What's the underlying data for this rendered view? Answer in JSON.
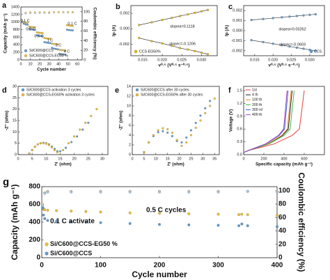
{
  "chart_data": [
    {
      "type": "scatter",
      "label": "a",
      "xlabel": "Cycle number",
      "ylabel": "Capacity (mAh g⁻¹)",
      "y2label": "Coulombic efficiency (%)",
      "xlim": [
        0,
        65
      ],
      "xticks": [
        0,
        10,
        20,
        30,
        40,
        50,
        60
      ],
      "ylim": [
        0,
        1400
      ],
      "yticks": [
        0,
        200,
        400,
        600,
        800,
        1000,
        1200,
        1400
      ],
      "y2lim": [
        0,
        110
      ],
      "y2ticks": [
        0,
        20,
        40,
        60,
        80,
        100
      ],
      "legend": "lower left",
      "annotations": [
        "0.1 C",
        "0.2 C",
        "0.5 C",
        "1 C",
        "2 C",
        "4 C",
        "0.1 C"
      ],
      "series": [
        {
          "name": "Si/C600@CCS",
          "color": "#5b9bd5",
          "x": [
            1,
            3,
            5,
            7,
            9,
            11,
            13,
            15,
            17,
            19,
            21,
            23,
            25,
            27,
            29,
            31,
            33,
            35,
            37,
            39,
            41,
            43,
            45,
            47,
            49,
            51,
            53,
            55
          ],
          "values": [
            1000,
            960,
            940,
            930,
            820,
            810,
            800,
            795,
            650,
            640,
            630,
            625,
            470,
            460,
            450,
            445,
            320,
            300,
            290,
            280,
            160,
            150,
            145,
            140,
            800,
            790,
            785,
            780
          ]
        },
        {
          "name": "Si/C600@CCS-EG50 %",
          "color": "#f2c12e",
          "x": [
            1,
            3,
            5,
            7,
            9,
            11,
            13,
            15,
            17,
            19,
            21,
            23,
            25,
            27,
            29,
            31,
            33,
            35,
            37,
            39,
            41,
            43,
            45,
            47,
            49,
            51,
            53,
            55
          ],
          "values": [
            1050,
            1000,
            990,
            980,
            880,
            870,
            865,
            860,
            730,
            720,
            715,
            710,
            580,
            570,
            565,
            560,
            430,
            420,
            415,
            410,
            270,
            260,
            255,
            250,
            920,
            910,
            905,
            900
          ]
        },
        {
          "color": "#a9cbe8",
          "axis": "y2",
          "x": [
            1,
            5,
            10,
            15,
            20,
            25,
            30,
            35,
            40,
            45,
            50,
            55
          ],
          "values": [
            80,
            97,
            98,
            98,
            98,
            98,
            98,
            99,
            99,
            99,
            99,
            99
          ]
        },
        {
          "color": "#f7dc8a",
          "axis": "y2",
          "x": [
            1,
            5,
            10,
            15,
            20,
            25,
            30,
            35,
            40,
            45,
            50,
            55
          ],
          "values": [
            82,
            98,
            99,
            99,
            99,
            99,
            99,
            99,
            99,
            99,
            99,
            99
          ]
        }
      ]
    },
    {
      "type": "scatter",
      "label": "b",
      "fit_line": true,
      "xlabel": "v⁰·⁵ (V⁰·⁵ s⁻⁰·⁵)",
      "ylabel": "Ip (A)",
      "xlim": [
        0.012,
        0.034
      ],
      "xticks": [
        0.015,
        {
          "value": 0.02,
          "label": "0.020"
        },
        0.025,
        {
          "value": 0.03,
          "label": "0.030"
        }
      ],
      "ylim": [
        -0.0035,
        0.003
      ],
      "yticks": [
        -0.002,
        {
          "value": 0,
          "label": "0.000"
        },
        0.002
      ],
      "legend": "lower left",
      "annotations": [
        "slopea=0.1118",
        "slopec=-0.1206"
      ],
      "series": [
        {
          "name": "CCS-EG50%",
          "color": "#e6b800",
          "x": [
            0.0141,
            0.0173,
            0.02,
            0.0224,
            0.0245,
            0.0265,
            0.0283,
            0.03,
            0.0316
          ],
          "values": [
            0.00048,
            0.00083,
            0.00114,
            0.0014,
            0.00164,
            0.00186,
            0.00206,
            0.00225,
            0.00243
          ]
        },
        {
          "color": "#e6b800",
          "x": [
            0.0141,
            0.0173,
            0.02,
            0.0224,
            0.0245,
            0.0265,
            0.0283,
            0.03,
            0.0316
          ],
          "values": [
            -0.0012,
            -0.0016,
            -0.0019,
            -0.0022,
            -0.0025,
            -0.0027,
            -0.0029,
            -0.0031,
            -0.0033
          ]
        }
      ]
    },
    {
      "type": "scatter",
      "label": "c",
      "fit_line": true,
      "xlabel": "v⁰·⁵ (V⁰·⁵ s⁻⁰·⁵)",
      "ylabel": "Ip (A)",
      "xlim": [
        0.012,
        0.034
      ],
      "xticks": [
        0.015,
        {
          "value": 0.02,
          "label": "0.020"
        },
        0.025,
        {
          "value": 0.03,
          "label": "0.030"
        }
      ],
      "ylim": [
        -0.0025,
        0.0025
      ],
      "yticks": [
        -0.002,
        -0.001,
        {
          "value": 0,
          "label": "0.000"
        },
        0.001,
        0.002
      ],
      "legend": "lower right",
      "annotations": [
        "slopea=0.03262",
        "slopec=-0.0603"
      ],
      "series": [
        {
          "name": "CCS",
          "color": "#5b9bd5",
          "x": [
            0.0141,
            0.0173,
            0.02,
            0.0224,
            0.0245,
            0.0265,
            0.0283,
            0.03,
            0.0316
          ],
          "values": [
            0.00106,
            0.00116,
            0.00125,
            0.00133,
            0.0014,
            0.00146,
            0.00152,
            0.00158,
            0.00163
          ]
        },
        {
          "color": "#5b9bd5",
          "x": [
            0.0141,
            0.0173,
            0.02,
            0.0224,
            0.0245,
            0.0265,
            0.0283,
            0.03,
            0.0316
          ],
          "values": [
            -0.00095,
            -0.00114,
            -0.0013,
            -0.00145,
            -0.00158,
            -0.0017,
            -0.0018,
            -0.00191,
            -0.002
          ]
        }
      ]
    },
    {
      "type": "scatter",
      "label": "d",
      "xlabel": "Z' (ohm)",
      "ylabel": "-Z'' (ohm)",
      "xlim": [
        0,
        32
      ],
      "xticks": [
        0,
        5,
        10,
        15,
        20,
        25,
        30
      ],
      "ylim": [
        0,
        30
      ],
      "yticks": [
        0,
        5,
        10,
        15,
        20,
        25,
        30
      ],
      "legend": "upper left",
      "series": [
        {
          "name": "Si/C600@CCS activation 3 cycles",
          "color": "#5b9bd5",
          "x": [
            4,
            5,
            6,
            7,
            8,
            9,
            10,
            11,
            12,
            13,
            14,
            15,
            17,
            19,
            21,
            23,
            25
          ],
          "values": [
            0.5,
            2,
            3.5,
            4.5,
            5,
            5.2,
            5,
            4.5,
            3.5,
            2.5,
            1.5,
            1.5,
            3,
            5.5,
            8,
            11,
            14
          ]
        },
        {
          "name": "Si/C600@CCS-EG50% activation 3 cycles",
          "color": "#f2c12e",
          "x": [
            4,
            5,
            6,
            7,
            8,
            9,
            10,
            11,
            12,
            13,
            14,
            16,
            18,
            20,
            22,
            24,
            26,
            28
          ],
          "values": [
            0.5,
            2,
            3.5,
            4.5,
            5,
            5,
            4.8,
            4.2,
            3.2,
            2,
            1,
            2,
            5,
            8,
            11,
            14,
            17,
            20
          ]
        }
      ]
    },
    {
      "type": "scatter",
      "label": "e",
      "xlabel": "Z' (ohm)",
      "ylabel": "-Z'' (ohm)",
      "xlim": [
        0,
        37
      ],
      "xticks": [
        0,
        5,
        10,
        15,
        20,
        25,
        30,
        35
      ],
      "ylim": [
        0,
        14
      ],
      "yticks": [
        0,
        2,
        4,
        6,
        8,
        10,
        12,
        14
      ],
      "legend": "upper left",
      "series": [
        {
          "name": "Si/C600@CCS after 30 cycles",
          "color": "#5b9bd5",
          "x": [
            5,
            7,
            9,
            11,
            13,
            15,
            17,
            19,
            21,
            23,
            25,
            27,
            29,
            31,
            33
          ],
          "values": [
            0.5,
            2.5,
            3.8,
            4.6,
            4.8,
            4.5,
            3.8,
            2.8,
            2.5,
            3.5,
            5,
            6.5,
            8,
            9.5,
            11
          ]
        },
        {
          "name": "Si/C600@CCS-EG50% after 30 cycles",
          "color": "#f2c12e",
          "x": [
            5,
            7,
            9,
            11,
            13,
            15,
            17,
            19,
            21,
            23,
            25,
            27,
            29,
            31,
            33,
            35
          ],
          "values": [
            0.5,
            2.5,
            4,
            5,
            5.4,
            5.2,
            4.5,
            3,
            1.8,
            2.5,
            4,
            5.5,
            7,
            8.5,
            10,
            11.5
          ]
        }
      ]
    },
    {
      "type": "line",
      "label": "f",
      "xlabel": "Specific capacity (mAh g⁻¹)",
      "ylabel": "Voltage (V)",
      "xlim": [
        0,
        800
      ],
      "xticks": [
        0,
        200,
        400,
        600
      ],
      "ylim": [
        0,
        1.6
      ],
      "yticks": [
        {
          "value": 0,
          "label": "0.0"
        },
        0.3,
        0.6,
        0.9,
        1.2,
        1.5
      ],
      "legend": "upper left",
      "series": [
        {
          "name": "1st",
          "color": "#e8403a",
          "x": [
            0,
            50,
            300,
            480,
            552,
            600
          ],
          "values": [
            0.05,
            0.1,
            0.25,
            0.45,
            0.6,
            1.5
          ]
        },
        {
          "name": "4 th",
          "color": "#222222",
          "x": [
            0,
            50,
            240,
            384,
            442,
            480
          ],
          "values": [
            0.05,
            0.1,
            0.25,
            0.45,
            0.6,
            1.5
          ]
        },
        {
          "name": "100 th",
          "color": "#f28c28",
          "x": [
            0,
            50,
            235,
            376,
            432,
            470
          ],
          "values": [
            0.05,
            0.1,
            0.25,
            0.45,
            0.6,
            1.5
          ]
        },
        {
          "name": "200 th",
          "color": "#3cb44b",
          "x": [
            0,
            50,
            250,
            400,
            460,
            500
          ],
          "values": [
            0.05,
            0.1,
            0.25,
            0.45,
            0.6,
            1.5
          ]
        },
        {
          "name": "300 rd",
          "color": "#4363d8",
          "x": [
            0,
            50,
            220,
            352,
            405,
            440
          ],
          "values": [
            0.05,
            0.1,
            0.25,
            0.45,
            0.6,
            1.5
          ]
        },
        {
          "name": "400 th",
          "color": "#a040c0",
          "x": [
            0,
            50,
            215,
            344,
            396,
            430
          ],
          "values": [
            0.05,
            0.1,
            0.25,
            0.45,
            0.6,
            1.5
          ]
        }
      ]
    },
    {
      "type": "scatter",
      "label": "g",
      "xlabel": "Cycle number",
      "ylabel": "Capacity (mAh g⁻¹)",
      "y2label": "Coulombic efficiency (%)",
      "xlim": [
        0,
        400
      ],
      "xticks": [
        0,
        100,
        200,
        300,
        400
      ],
      "ylim": [
        0,
        800
      ],
      "yticks": [
        0,
        200,
        400,
        600,
        800
      ],
      "y2lim": [
        0,
        106
      ],
      "y2ticks": [
        0,
        20,
        40,
        60,
        80,
        100
      ],
      "legend": "lower left",
      "annotations": [
        "0.1 C activate",
        "0.5 C cycles"
      ],
      "series": [
        {
          "name": "Si/C600@CCS-EG50 %",
          "color": "#f2c12e",
          "x": [
            1,
            2,
            3,
            5,
            10,
            25,
            50,
            75,
            100,
            150,
            200,
            250,
            300,
            335,
            340,
            350,
            400
          ],
          "values": [
            600,
            560,
            545,
            540,
            535,
            530,
            525,
            520,
            515,
            505,
            500,
            495,
            490,
            485,
            490,
            485,
            475
          ]
        },
        {
          "name": "Si/C600@CCS",
          "color": "#5b9bd5",
          "x": [
            1,
            2,
            3,
            5,
            10,
            25,
            50,
            75,
            100,
            150,
            200,
            250,
            300,
            335,
            340,
            350,
            400
          ],
          "values": [
            600,
            560,
            480,
            440,
            420,
            410,
            405,
            400,
            395,
            385,
            375,
            370,
            365,
            360,
            380,
            360,
            350
          ]
        },
        {
          "color": "#f7dc8a",
          "axis": "y2",
          "x": [
            1,
            5,
            10,
            50,
            100,
            150,
            200,
            250,
            300,
            350,
            400
          ],
          "values": [
            80,
            97,
            99,
            99,
            99,
            99,
            99,
            99,
            99,
            99,
            99
          ]
        },
        {
          "color": "#a9cbe8",
          "axis": "y2",
          "x": [
            1,
            5,
            10,
            50,
            100,
            150,
            200,
            250,
            300,
            350,
            400
          ],
          "values": [
            78,
            96,
            98,
            98,
            98,
            98,
            98,
            98,
            98,
            99,
            98
          ]
        }
      ]
    }
  ]
}
